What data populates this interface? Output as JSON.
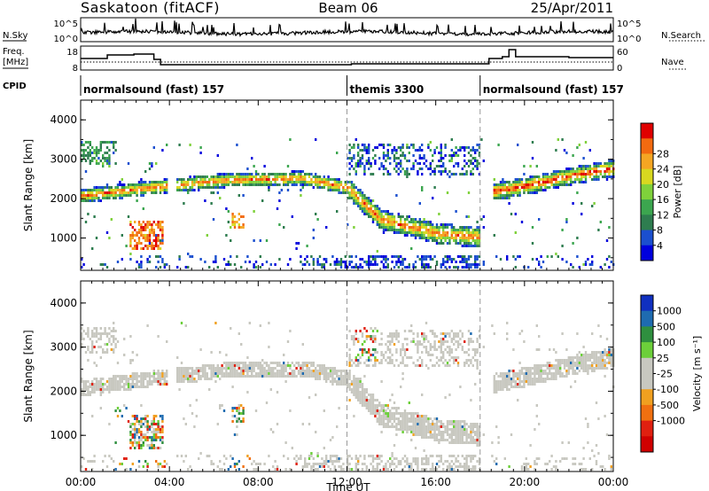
{
  "header": {
    "station": "Saskatoon (fitACF)",
    "beam": "Beam 06",
    "date": "25/Apr/2011"
  },
  "panels": {
    "nsky": {
      "label": "N.Sky",
      "left_ticks": [
        "10^5",
        "10^0"
      ],
      "right_ticks": [
        "10^5",
        "10^0"
      ],
      "right_label": "N.Search"
    },
    "freq": {
      "label_line1": "Freq.",
      "label_line2": "[MHz]",
      "left_ticks": [
        "18",
        "8"
      ],
      "right_ticks": [
        "60",
        "0"
      ],
      "right_label": "Nave"
    },
    "cpid": {
      "label": "CPID",
      "programs": [
        "normalsound (fast) 157",
        "themis 3300",
        "normalsound (fast) 157"
      ],
      "program_start_hours": [
        0,
        12,
        18
      ]
    }
  },
  "colors": {
    "power_scale": [
      "#0000dd",
      "#1b4fcf",
      "#2e7d4f",
      "#3ca64f",
      "#7fd13b",
      "#d8d820",
      "#f5a623",
      "#f26a10",
      "#e00000"
    ],
    "velocity_scale": [
      "#1030c0",
      "#1e6bb0",
      "#2f8f3f",
      "#6ccf3a",
      "#c8c8c0",
      "#c8c8c0",
      "#f0a020",
      "#f07010",
      "#e02010",
      "#d00000"
    ],
    "ground_scatter": "#c8c8c0"
  },
  "chart_data": [
    {
      "type": "heatmap",
      "title": "Power",
      "xlabel": "Time UT",
      "ylabel": "Slant Range [km]",
      "x_ticks": [
        "00:00",
        "04:00",
        "08:00",
        "12:00",
        "16:00",
        "20:00",
        "00:00"
      ],
      "y_ticks": [
        "1000",
        "2000",
        "3000",
        "4000"
      ],
      "xlim_hours": [
        0,
        24
      ],
      "ylim_km": [
        180,
        4500
      ],
      "colorbar_label": "Power [dB]",
      "colorbar_ticks": [
        "4",
        "8",
        "12",
        "16",
        "20",
        "24",
        "28"
      ],
      "features": [
        {
          "name": "band_A",
          "t": [
            0.0,
            3.0,
            6.5,
            10.0,
            12.0,
            13.5,
            16.0,
            18.0
          ],
          "r": [
            2100,
            2300,
            2500,
            2550,
            2300,
            1500,
            1150,
            1050
          ],
          "level": 0.75
        },
        {
          "name": "band_B",
          "t": [
            18.5,
            20.0,
            22.0,
            24.0
          ],
          "r": [
            2200,
            2350,
            2600,
            2800
          ],
          "level": 0.85
        },
        {
          "name": "patch_3h",
          "t": [
            2.2,
            3.7
          ],
          "r": [
            700,
            1500
          ],
          "level": 0.95
        },
        {
          "name": "patch_7h",
          "t": [
            6.8,
            7.3
          ],
          "r": [
            1300,
            1700
          ],
          "level": 0.9
        },
        {
          "name": "upper_cloud",
          "t": [
            12.0,
            18.0
          ],
          "r": [
            2600,
            3400
          ],
          "level": 0.35
        }
      ]
    },
    {
      "type": "heatmap",
      "title": "Velocity",
      "xlabel": "Time UT",
      "ylabel": "Slant Range [km]",
      "x_ticks": [
        "00:00",
        "04:00",
        "08:00",
        "12:00",
        "16:00",
        "20:00",
        "00:00"
      ],
      "y_ticks": [
        "1000",
        "2000",
        "3000",
        "4000"
      ],
      "xlim_hours": [
        0,
        24
      ],
      "ylim_km": [
        180,
        4500
      ],
      "colorbar_label": "Velocity [m s⁻¹]",
      "colorbar_ticks": [
        "1000",
        "500",
        "100",
        "25",
        "-25",
        "-100",
        "-500",
        "-1000"
      ]
    }
  ]
}
